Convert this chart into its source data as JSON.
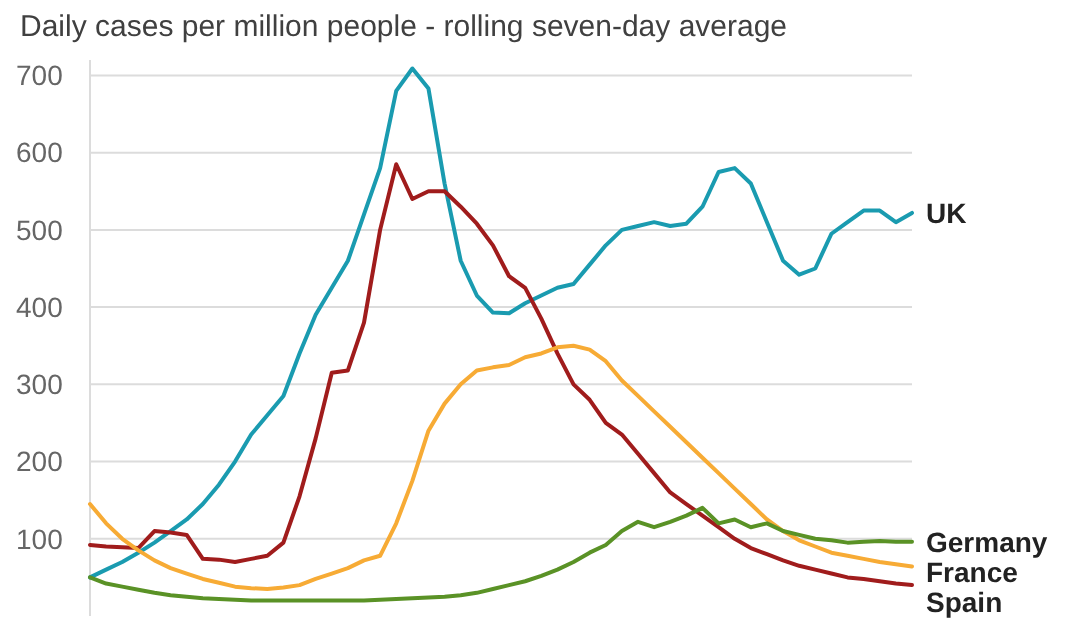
{
  "chart_data": {
    "type": "line",
    "title": "Daily cases per million people - rolling seven-day average",
    "categories": [
      null,
      null,
      null,
      null,
      null,
      null,
      null,
      null,
      null,
      null,
      null,
      null,
      null,
      null,
      null,
      null,
      null,
      null,
      null,
      null,
      null,
      null,
      null,
      null,
      null,
      null,
      null,
      null,
      null,
      null,
      null,
      null,
      null,
      null,
      null,
      null,
      null,
      null,
      null,
      null,
      null,
      null,
      null,
      null,
      null,
      null,
      null,
      null,
      null,
      null,
      null,
      null
    ],
    "series": [
      {
        "name": "UK",
        "color": "#1a9bb0",
        "values": [
          50,
          60,
          70,
          82,
          95,
          110,
          125,
          145,
          170,
          200,
          235,
          260,
          285,
          340,
          390,
          425,
          460,
          520,
          580,
          680,
          709,
          683,
          560,
          460,
          415,
          393,
          392,
          405,
          415,
          425,
          430,
          455,
          480,
          500,
          505,
          510,
          505,
          508,
          530,
          575,
          580,
          560,
          510,
          460,
          442,
          450,
          495,
          510,
          525,
          525,
          510,
          522
        ]
      },
      {
        "name": "Spain",
        "color": "#a01c1c",
        "values": [
          92,
          90,
          89,
          88,
          110,
          108,
          105,
          74,
          73,
          70,
          74,
          78,
          95,
          155,
          230,
          315,
          318,
          380,
          500,
          585,
          540,
          550,
          550,
          530,
          508,
          480,
          440,
          425,
          385,
          340,
          300,
          280,
          250,
          235,
          210,
          185,
          160,
          145,
          130,
          115,
          100,
          88,
          80,
          72,
          65,
          60,
          55,
          50,
          48,
          45,
          42,
          40
        ]
      },
      {
        "name": "France",
        "color": "#f7ab35",
        "values": [
          145,
          120,
          100,
          85,
          72,
          62,
          55,
          48,
          43,
          38,
          36,
          35,
          37,
          40,
          48,
          55,
          62,
          72,
          78,
          120,
          175,
          240,
          275,
          300,
          318,
          322,
          325,
          335,
          340,
          348,
          350,
          345,
          330,
          305,
          285,
          265,
          245,
          225,
          205,
          185,
          165,
          145,
          125,
          110,
          98,
          90,
          82,
          78,
          74,
          70,
          67,
          64
        ]
      },
      {
        "name": "Germany",
        "color": "#5a9226",
        "values": [
          50,
          42,
          38,
          34,
          30,
          27,
          25,
          23,
          22,
          21,
          20,
          20,
          20,
          20,
          20,
          20,
          20,
          20,
          21,
          22,
          23,
          24,
          25,
          27,
          30,
          35,
          40,
          45,
          52,
          60,
          70,
          82,
          92,
          110,
          122,
          115,
          122,
          130,
          140,
          120,
          125,
          115,
          120,
          110,
          105,
          100,
          98,
          95,
          96,
          97,
          96,
          96
        ]
      }
    ],
    "ylim": [
      0,
      720
    ],
    "yticks": [
      100,
      200,
      300,
      400,
      500,
      600,
      700
    ],
    "grid": "y",
    "tick_labels": "y",
    "legend": "right",
    "line_style": "solid",
    "marker": "none"
  }
}
